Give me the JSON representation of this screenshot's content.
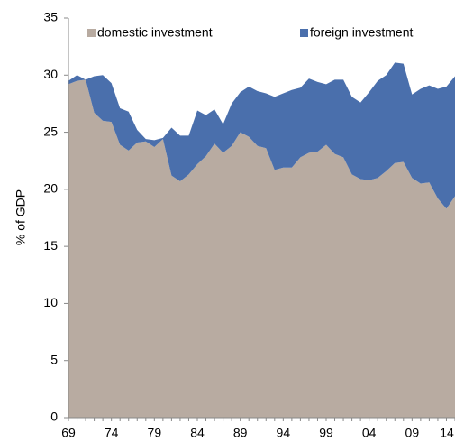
{
  "chart_data": {
    "type": "stacked_area",
    "y_label": "% of GDP",
    "categories": [
      "69",
      null,
      null,
      null,
      null,
      "74",
      null,
      null,
      null,
      null,
      "79",
      null,
      null,
      null,
      null,
      "84",
      null,
      null,
      null,
      null,
      "89",
      null,
      null,
      null,
      null,
      "94",
      null,
      null,
      null,
      null,
      "99",
      null,
      null,
      null,
      null,
      "04",
      null,
      null,
      null,
      null,
      "09",
      null,
      null,
      null,
      null,
      "14"
    ],
    "series": [
      {
        "name": "domestic investment",
        "color": "#b8aba1",
        "values": [
          29.2,
          29.5,
          29.6,
          26.7,
          26.0,
          25.9,
          23.9,
          23.4,
          24.1,
          24.2,
          23.7,
          24.4,
          21.2,
          20.7,
          21.3,
          22.2,
          22.9,
          24.0,
          23.2,
          23.8,
          25.0,
          24.6,
          23.8,
          23.6,
          21.7,
          21.9,
          21.9,
          22.8,
          23.2,
          23.3,
          23.9,
          23.1,
          22.8,
          21.3,
          20.9,
          20.8,
          21.0,
          21.6,
          22.3,
          22.4,
          21.0,
          20.5,
          20.6,
          19.2,
          18.3,
          19.4
        ]
      },
      {
        "name": "foreign investment",
        "color": "#4a6fac",
        "values": [
          0.3,
          0.5,
          0.0,
          3.2,
          4.0,
          3.4,
          3.2,
          3.4,
          1.1,
          0.2,
          0.6,
          0.1,
          4.2,
          4.0,
          3.4,
          4.7,
          3.6,
          3.0,
          2.5,
          3.7,
          3.5,
          4.4,
          4.8,
          4.8,
          6.4,
          6.5,
          6.8,
          6.1,
          6.5,
          6.1,
          5.3,
          6.5,
          6.8,
          6.8,
          6.7,
          7.7,
          8.5,
          8.4,
          8.8,
          8.6,
          7.3,
          8.3,
          8.5,
          9.6,
          10.7,
          10.5
        ]
      }
    ],
    "ylim": [
      0,
      35
    ],
    "yticks": [
      0,
      5,
      10,
      15,
      20,
      25,
      30,
      35
    ]
  }
}
